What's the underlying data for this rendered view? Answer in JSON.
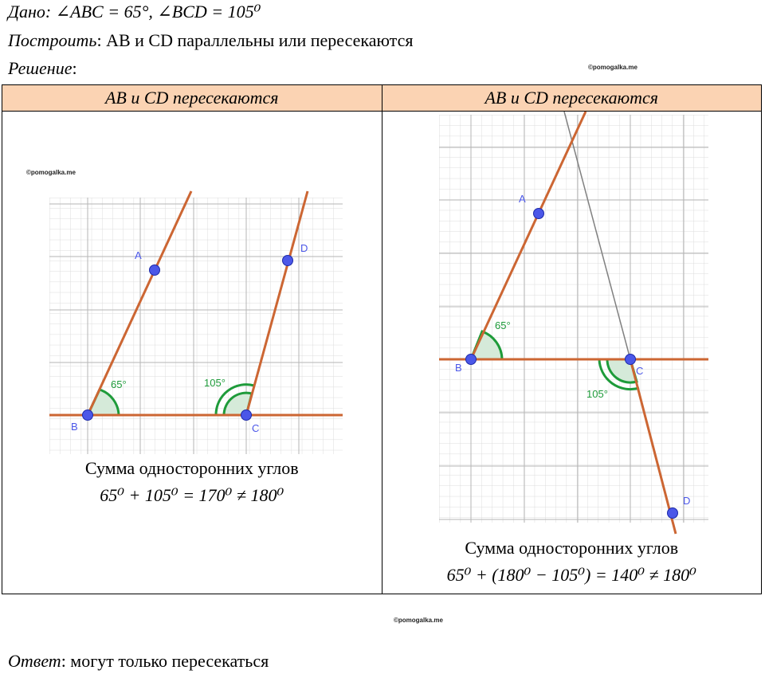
{
  "given": {
    "label": "Дано",
    "text": ": ∠ABC = 65°,  ∠BCD = 105⁰"
  },
  "construct": {
    "label": "Построить",
    "text": ": AB и CD параллельны или пересекаются"
  },
  "solution": {
    "label": "Решение",
    "text": ":"
  },
  "watermark": "©pomogalka.me",
  "table": {
    "left": {
      "header": "AB и CD пересекаются",
      "angle1": "65°",
      "angle2": "105°",
      "points": {
        "A": "A",
        "B": "B",
        "C": "C",
        "D": "D"
      },
      "caption1": "Сумма односторонних углов",
      "caption2": "65⁰ + 105⁰ = 170⁰ ≠ 180⁰"
    },
    "right": {
      "header": "AB и CD пересекаются",
      "angle1": "65°",
      "angle2": "105°",
      "points": {
        "A": "A",
        "B": "B",
        "C": "C",
        "D": "D"
      },
      "caption1": "Сумма односторонних углов",
      "caption2": "65⁰ + (180⁰ − 105⁰) = 140⁰ ≠ 180⁰"
    }
  },
  "answer": {
    "label": "Ответ",
    "text": ": могут только пересекаться"
  },
  "colors": {
    "header_bg": "#fbd3b3",
    "line": "#cc6633",
    "point": "#4b57e8",
    "angle": "#1e9b3a",
    "grid": "#d0d0d0",
    "grid_major": "#b8b8b8"
  }
}
